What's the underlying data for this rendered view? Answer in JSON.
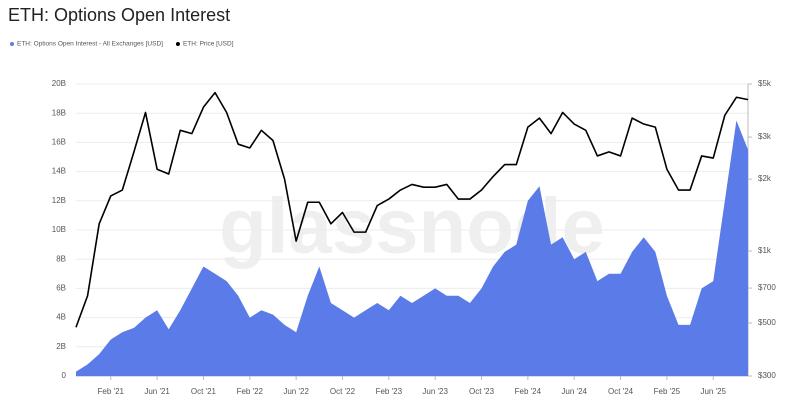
{
  "chart_data": {
    "type": "combo",
    "title": "ETH: Options Open Interest",
    "watermark": "glassnode",
    "categories": [
      null,
      null,
      null,
      "Feb '21",
      null,
      null,
      null,
      "Jun '21",
      null,
      null,
      null,
      "Oct '21",
      null,
      null,
      null,
      "Feb '22",
      null,
      null,
      null,
      "Jun '22",
      null,
      null,
      null,
      "Oct '22",
      null,
      null,
      null,
      "Feb '23",
      null,
      null,
      null,
      "Jun '23",
      null,
      null,
      null,
      "Oct '23",
      null,
      null,
      null,
      "Feb '24",
      null,
      null,
      null,
      "Jun '24",
      null,
      null,
      null,
      "Oct '24",
      null,
      null,
      null,
      "Feb '25",
      null,
      null,
      null,
      "Jun '25",
      null,
      null,
      null
    ],
    "series": [
      {
        "name": "ETH: Options Open Interest - All Exchanges [USD]",
        "type": "area",
        "color": "#5b7be9",
        "values": [
          0.3,
          0.8,
          1.5,
          2.5,
          3.0,
          3.3,
          4.0,
          4.5,
          3.2,
          4.5,
          6.0,
          7.5,
          7.0,
          6.5,
          5.5,
          4.0,
          4.5,
          4.2,
          3.5,
          3.0,
          5.5,
          7.5,
          5.0,
          4.5,
          4.0,
          4.5,
          5.0,
          4.5,
          5.5,
          5.0,
          5.5,
          6.0,
          5.5,
          5.5,
          5.0,
          6.0,
          7.5,
          8.5,
          9.0,
          12.0,
          13.0,
          9.0,
          9.5,
          8.0,
          8.5,
          6.5,
          7.0,
          7.0,
          8.5,
          9.5,
          8.5,
          5.5,
          3.5,
          3.5,
          6.0,
          6.5,
          12.0,
          17.5,
          15.5
        ]
      },
      {
        "name": "ETH: Price [USD]",
        "type": "line",
        "color": "#000000",
        "axis": "y2",
        "values": [
          480,
          650,
          1300,
          1700,
          1800,
          2600,
          3800,
          2200,
          2100,
          3200,
          3100,
          4000,
          4600,
          3800,
          2800,
          2700,
          3200,
          2900,
          2000,
          1100,
          1600,
          1600,
          1300,
          1450,
          1200,
          1200,
          1550,
          1650,
          1800,
          1900,
          1850,
          1850,
          1900,
          1650,
          1650,
          1800,
          2050,
          2300,
          2300,
          3300,
          3600,
          3100,
          3800,
          3400,
          3200,
          2500,
          2600,
          2500,
          3600,
          3400,
          3300,
          2200,
          1800,
          1800,
          2500,
          2450,
          3700,
          4400,
          4300
        ]
      }
    ],
    "ylim": [
      0,
      20
    ],
    "yticks": [
      0,
      {
        "value": 2,
        "label": "2B"
      },
      {
        "value": 4,
        "label": "4B"
      },
      {
        "value": 6,
        "label": "6B"
      },
      {
        "value": 8,
        "label": "8B"
      },
      {
        "value": 10,
        "label": "10B"
      },
      {
        "value": 12,
        "label": "12B"
      },
      {
        "value": 14,
        "label": "14B"
      },
      {
        "value": 16,
        "label": "16B"
      },
      {
        "value": 18,
        "label": "18B"
      },
      {
        "value": 20,
        "label": "20B"
      }
    ],
    "y2lim": [
      300,
      5000
    ],
    "y2log": true,
    "y2ticks": [
      {
        "value": 300,
        "label": "$300"
      },
      {
        "value": 500,
        "label": "$500"
      },
      {
        "value": 700,
        "label": "$700"
      },
      {
        "value": 1000,
        "label": "$1k"
      },
      {
        "value": 2000,
        "label": "$2k"
      },
      {
        "value": 3000,
        "label": "$3k"
      },
      {
        "value": 5000,
        "label": "$5k"
      }
    ],
    "grid": true,
    "legend": "top-left"
  }
}
